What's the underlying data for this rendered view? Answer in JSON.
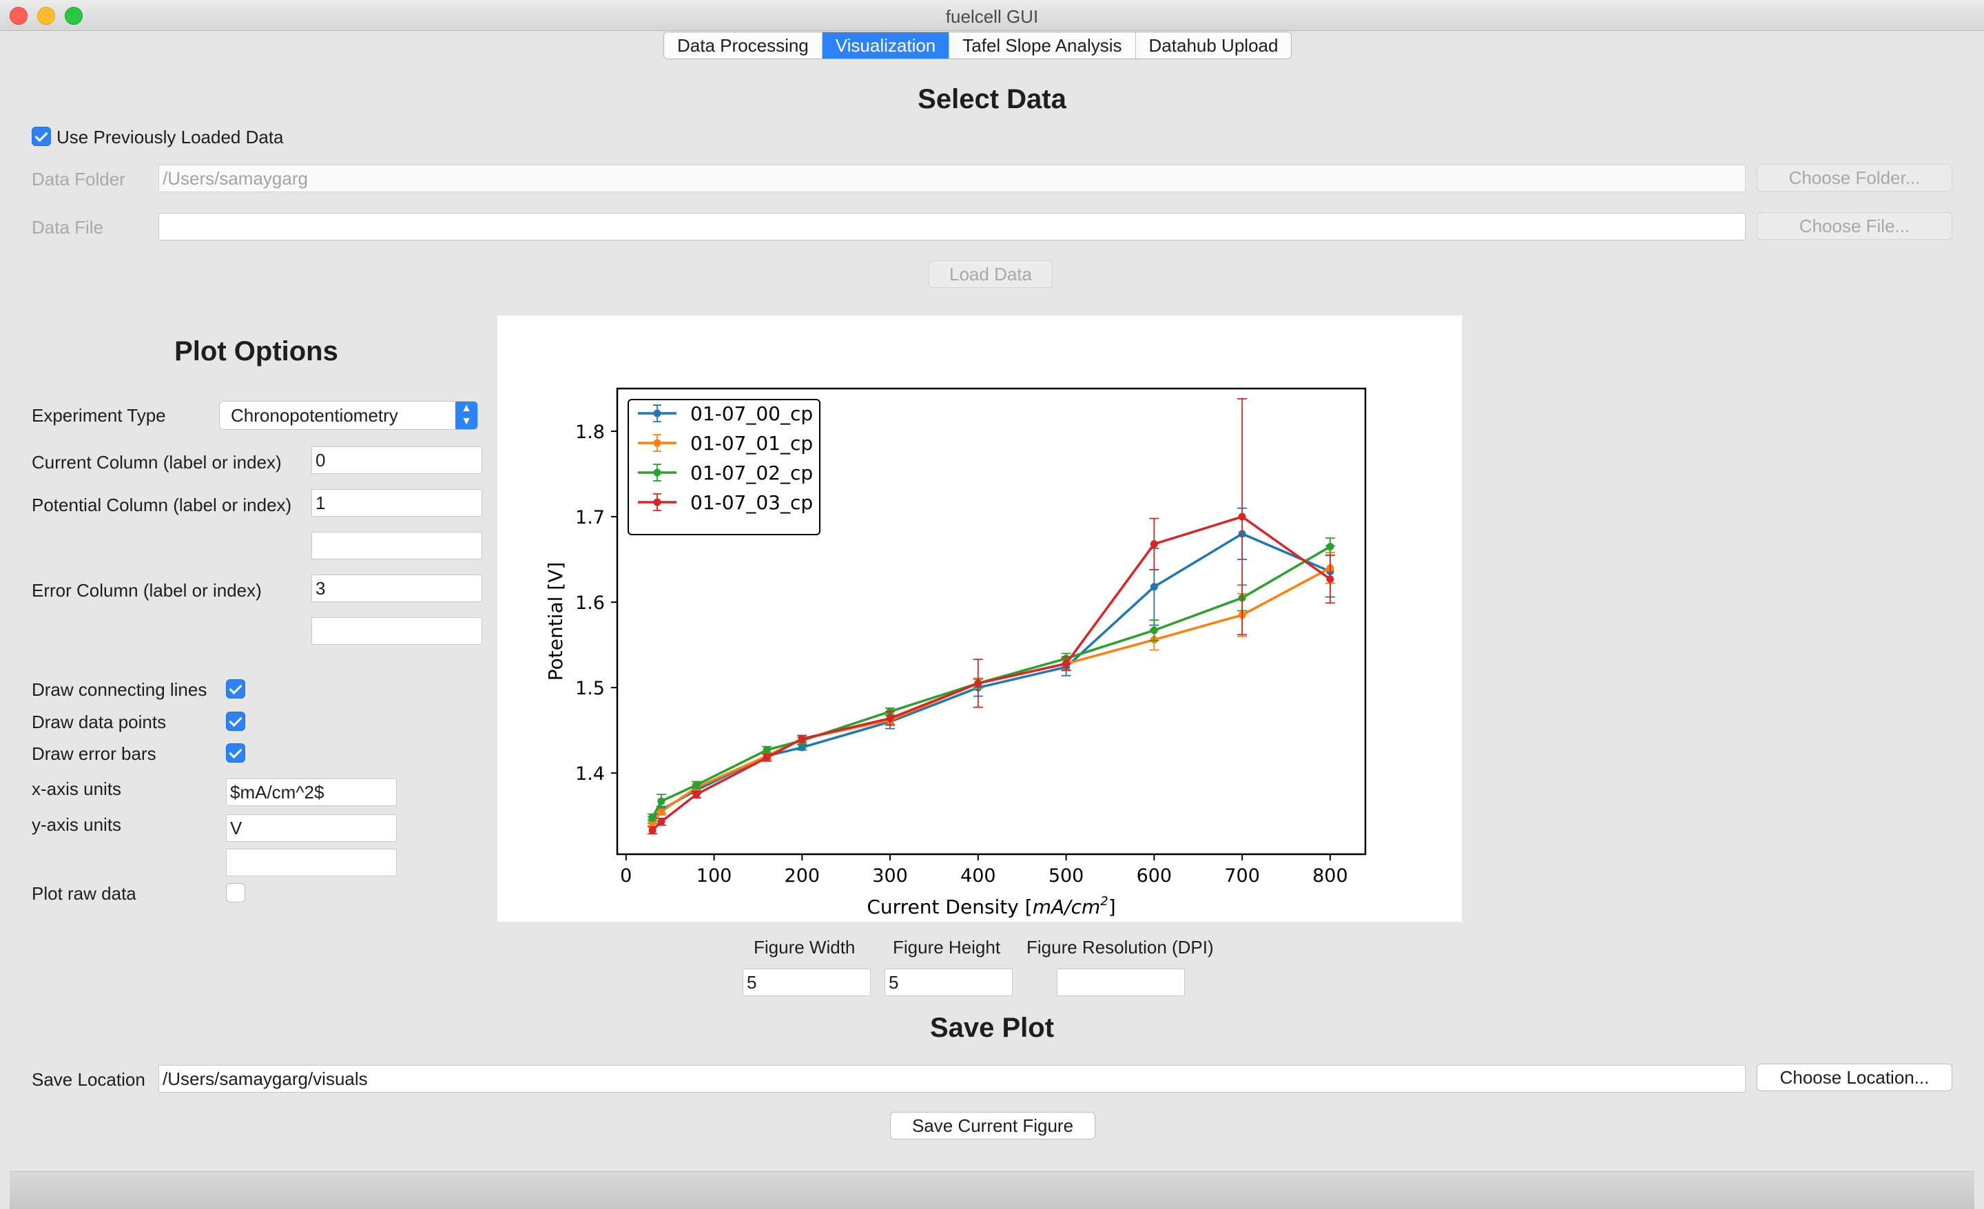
{
  "window": {
    "title": "fuelcell GUI"
  },
  "tabs": [
    {
      "label": "Data Processing",
      "active": false
    },
    {
      "label": "Visualization",
      "active": true
    },
    {
      "label": "Tafel Slope Analysis",
      "active": false
    },
    {
      "label": "Datahub Upload",
      "active": false
    }
  ],
  "select_data": {
    "heading": "Select Data",
    "use_previous_label": "Use Previously Loaded Data",
    "use_previous_checked": true,
    "folder_label": "Data Folder",
    "folder_value": "/Users/samaygarg",
    "choose_folder": "Choose Folder...",
    "file_label": "Data File",
    "file_value": "",
    "choose_file": "Choose File...",
    "load_data": "Load Data"
  },
  "plot_options": {
    "heading": "Plot Options",
    "experiment_type_label": "Experiment Type",
    "experiment_type_value": "Chronopotentiometry",
    "current_column_label": "Current Column (label or index)",
    "current_column_value": "0",
    "potential_column_label": "Potential Column (label or index)",
    "potential_column_value": "1",
    "potential_column_extra": "",
    "error_column_label": "Error Column (label or index)",
    "error_column_value": "3",
    "error_column_extra": "",
    "draw_lines_label": "Draw connecting lines",
    "draw_lines_checked": true,
    "draw_points_label": "Draw data points",
    "draw_points_checked": true,
    "draw_errors_label": "Draw error bars",
    "draw_errors_checked": true,
    "x_units_label": "x-axis units",
    "x_units_value": "$mA/cm^2$",
    "y_units_label": "y-axis units",
    "y_units_value": "V",
    "units_extra": "",
    "plot_raw_label": "Plot raw data",
    "plot_raw_checked": false
  },
  "figure": {
    "width_label": "Figure Width",
    "width_value": "5",
    "height_label": "Figure Height",
    "height_value": "5",
    "dpi_label": "Figure Resolution (DPI)",
    "dpi_value": ""
  },
  "save_plot": {
    "heading": "Save Plot",
    "location_label": "Save Location",
    "location_value": "/Users/samaygarg/visuals",
    "choose_location": "Choose Location...",
    "save_button": "Save Current Figure"
  },
  "chart_data": {
    "type": "line",
    "title": "",
    "xlabel": "Current Density",
    "xlabel_unit_math": "mA/cm",
    "xlabel_unit_sup": "2",
    "ylabel": "Potential [V]",
    "xlim": [
      -10,
      840
    ],
    "ylim": [
      1.305,
      1.85
    ],
    "xticks": [
      "0",
      "100",
      "200",
      "300",
      "400",
      "500",
      "600",
      "700",
      "800"
    ],
    "yticks": [
      "1.4",
      "1.5",
      "1.6",
      "1.7",
      "1.8"
    ],
    "grid": false,
    "legend": "top-left",
    "x": [
      30,
      40,
      80,
      160,
      200,
      300,
      400,
      500,
      600,
      700,
      800
    ],
    "series": [
      {
        "name": "01-07_00_cp",
        "color": "#1f77b4",
        "values": [
          1.345,
          1.357,
          1.38,
          1.42,
          1.43,
          1.46,
          1.5,
          1.524,
          1.618,
          1.68,
          1.636
        ],
        "errors": [
          0.004,
          0.004,
          0.004,
          0.004,
          0.003,
          0.008,
          0.01,
          0.01,
          0.045,
          0.03,
          0.03
        ]
      },
      {
        "name": "01-07_01_cp",
        "color": "#ff7f0e",
        "values": [
          1.342,
          1.355,
          1.383,
          1.42,
          1.44,
          1.462,
          1.505,
          1.528,
          1.556,
          1.585,
          1.64
        ],
        "errors": [
          0.004,
          0.004,
          0.004,
          0.004,
          0.004,
          0.005,
          0.006,
          0.007,
          0.012,
          0.025,
          0.018
        ]
      },
      {
        "name": "01-07_02_cp",
        "color": "#2ca02c",
        "values": [
          1.348,
          1.367,
          1.386,
          1.427,
          1.438,
          1.472,
          1.505,
          1.534,
          1.567,
          1.605,
          1.665
        ],
        "errors": [
          0.004,
          0.008,
          0.004,
          0.004,
          0.004,
          0.004,
          0.005,
          0.006,
          0.012,
          0.015,
          0.01
        ]
      },
      {
        "name": "01-07_03_cp",
        "color": "#d62728",
        "values": [
          1.333,
          1.343,
          1.375,
          1.418,
          1.44,
          1.464,
          1.505,
          1.528,
          1.668,
          1.7,
          1.627
        ],
        "errors": [
          0.004,
          0.004,
          0.004,
          0.004,
          0.004,
          0.008,
          0.028,
          0.008,
          0.03,
          0.138,
          0.028
        ]
      }
    ]
  }
}
